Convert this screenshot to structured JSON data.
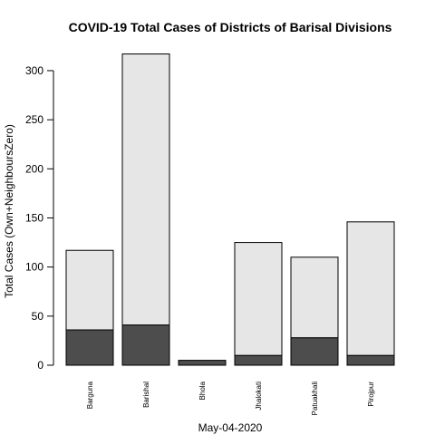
{
  "chart_data": {
    "type": "bar",
    "stacked": true,
    "title": "COVID-19 Total Cases of Districts of Barisal Divisions",
    "xlabel": "May-04-2020",
    "ylabel": "Total Cases (Own+NeighboursZero)",
    "ylim": [
      0,
      300
    ],
    "yticks": [
      0,
      50,
      100,
      150,
      200,
      250,
      300
    ],
    "categories": [
      "Barguna",
      "Barishal",
      "Bhola",
      "Jhalokati",
      "Patuakhali",
      "Pirojpur"
    ],
    "series": [
      {
        "values": [
          36,
          41,
          5,
          10,
          28,
          10
        ],
        "color": "#4d4d4d"
      },
      {
        "values": [
          81,
          276,
          0,
          115,
          82,
          136
        ],
        "color": "#e6e6e6"
      }
    ],
    "totals": [
      117,
      317,
      5,
      125,
      110,
      146
    ],
    "grid": false,
    "legend": "none"
  }
}
